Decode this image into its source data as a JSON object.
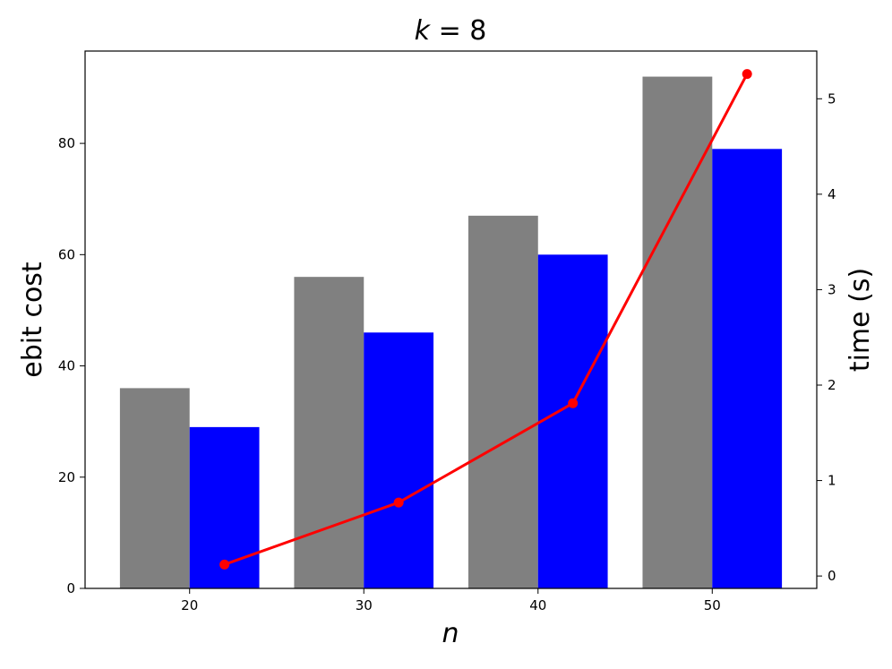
{
  "chart_data": {
    "type": "bar",
    "title_math_symbol": "k",
    "title_rest": " = 8",
    "xlabel": "n",
    "ylabel_left": "ebit cost",
    "ylabel_right": "time (s)",
    "x_ticks": [
      "20",
      "30",
      "40",
      "50"
    ],
    "y_left_ticks": [
      "0",
      "20",
      "40",
      "60",
      "80"
    ],
    "y_right_ticks": [
      "0",
      "1",
      "2",
      "3",
      "4",
      "5"
    ],
    "xlim": [
      14,
      56
    ],
    "ylim_left": [
      0,
      96.6
    ],
    "ylim_right": [
      -0.13,
      5.5
    ],
    "categories": [
      20,
      30,
      40,
      50
    ],
    "series": [
      {
        "values": [
          36,
          56,
          67,
          92
        ],
        "color": "#808080",
        "axis": "left",
        "kind": "bar",
        "offset": -2
      },
      {
        "values": [
          29,
          46,
          60,
          79
        ],
        "color": "#0000ff",
        "axis": "left",
        "kind": "bar",
        "offset": 2
      },
      {
        "x": [
          22,
          32,
          42,
          52
        ],
        "values": [
          0.12,
          0.77,
          1.81,
          5.26
        ],
        "color": "#ff0000",
        "axis": "right",
        "kind": "line"
      }
    ],
    "bar_width": 4,
    "grid": false
  }
}
